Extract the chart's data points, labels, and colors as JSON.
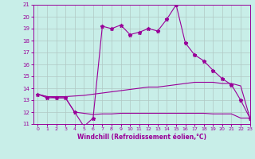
{
  "xlabel": "Windchill (Refroidissement éolien,°C)",
  "xlim": [
    -0.5,
    23
  ],
  "ylim": [
    11,
    21
  ],
  "xticks": [
    0,
    1,
    2,
    3,
    4,
    5,
    6,
    7,
    8,
    9,
    10,
    11,
    12,
    13,
    14,
    15,
    16,
    17,
    18,
    19,
    20,
    21,
    22,
    23
  ],
  "yticks": [
    11,
    12,
    13,
    14,
    15,
    16,
    17,
    18,
    19,
    20,
    21
  ],
  "bg_color": "#c8eee8",
  "line_color": "#990099",
  "grid_color": "#b0c8c4",
  "main_line": [
    13.5,
    13.2,
    13.2,
    13.2,
    12.0,
    10.8,
    11.5,
    19.2,
    19.0,
    19.3,
    18.5,
    18.7,
    19.0,
    18.8,
    19.8,
    21.0,
    17.8,
    16.8,
    16.3,
    15.5,
    14.8,
    14.3,
    13.0,
    11.5
  ],
  "upper_flat_line": [
    13.5,
    13.3,
    13.3,
    13.3,
    13.35,
    13.4,
    13.5,
    13.6,
    13.7,
    13.8,
    13.9,
    14.0,
    14.1,
    14.1,
    14.2,
    14.3,
    14.4,
    14.5,
    14.5,
    14.5,
    14.4,
    14.4,
    14.2,
    11.5
  ],
  "lower_flat_line": [
    13.5,
    13.3,
    13.2,
    13.2,
    12.0,
    11.9,
    11.8,
    11.85,
    11.85,
    11.9,
    11.9,
    11.9,
    11.9,
    11.9,
    11.9,
    11.9,
    11.9,
    11.9,
    11.9,
    11.85,
    11.85,
    11.85,
    11.5,
    11.5
  ],
  "x_tick_fontsize": 4.5,
  "y_tick_fontsize": 5.0,
  "xlabel_fontsize": 5.5
}
